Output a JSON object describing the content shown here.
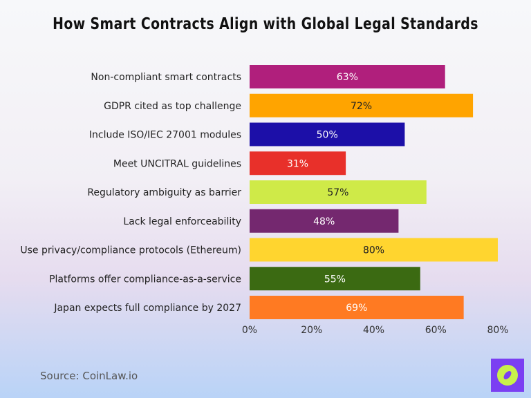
{
  "chart_data": {
    "type": "bar",
    "orientation": "horizontal",
    "title": "How Smart Contracts Align with Global Legal Standards",
    "categories": [
      "Non-compliant smart contracts",
      "GDPR cited as top challenge",
      "Include ISO/IEC 27001 modules",
      "Meet UNCITRAL guidelines",
      "Regulatory ambiguity as barrier",
      "Lack legal enforceability",
      "Use privacy/compliance protocols (Ethereum)",
      "Platforms offer compliance-as-a-service",
      "Japan expects full compliance by 2027"
    ],
    "values": [
      63,
      72,
      50,
      31,
      57,
      48,
      80,
      55,
      69
    ],
    "data_labels": [
      "63%",
      "72%",
      "50%",
      "31%",
      "57%",
      "48%",
      "80%",
      "55%",
      "69%"
    ],
    "colors": [
      "#b01f7c",
      "#ffa400",
      "#1c0fa8",
      "#e8302a",
      "#cfea48",
      "#74286f",
      "#ffd52f",
      "#3b6a12",
      "#ff7a22"
    ],
    "label_colors": [
      "#ffffff",
      "#222222",
      "#ffffff",
      "#ffffff",
      "#222222",
      "#ffffff",
      "#222222",
      "#ffffff",
      "#ffffff"
    ],
    "xlim": [
      0,
      80
    ],
    "xticks": [
      "0%",
      "20%",
      "40%",
      "60%",
      "80%"
    ],
    "grid": false,
    "xlabel": "",
    "ylabel": ""
  },
  "source": "Source: CoinLaw.io"
}
